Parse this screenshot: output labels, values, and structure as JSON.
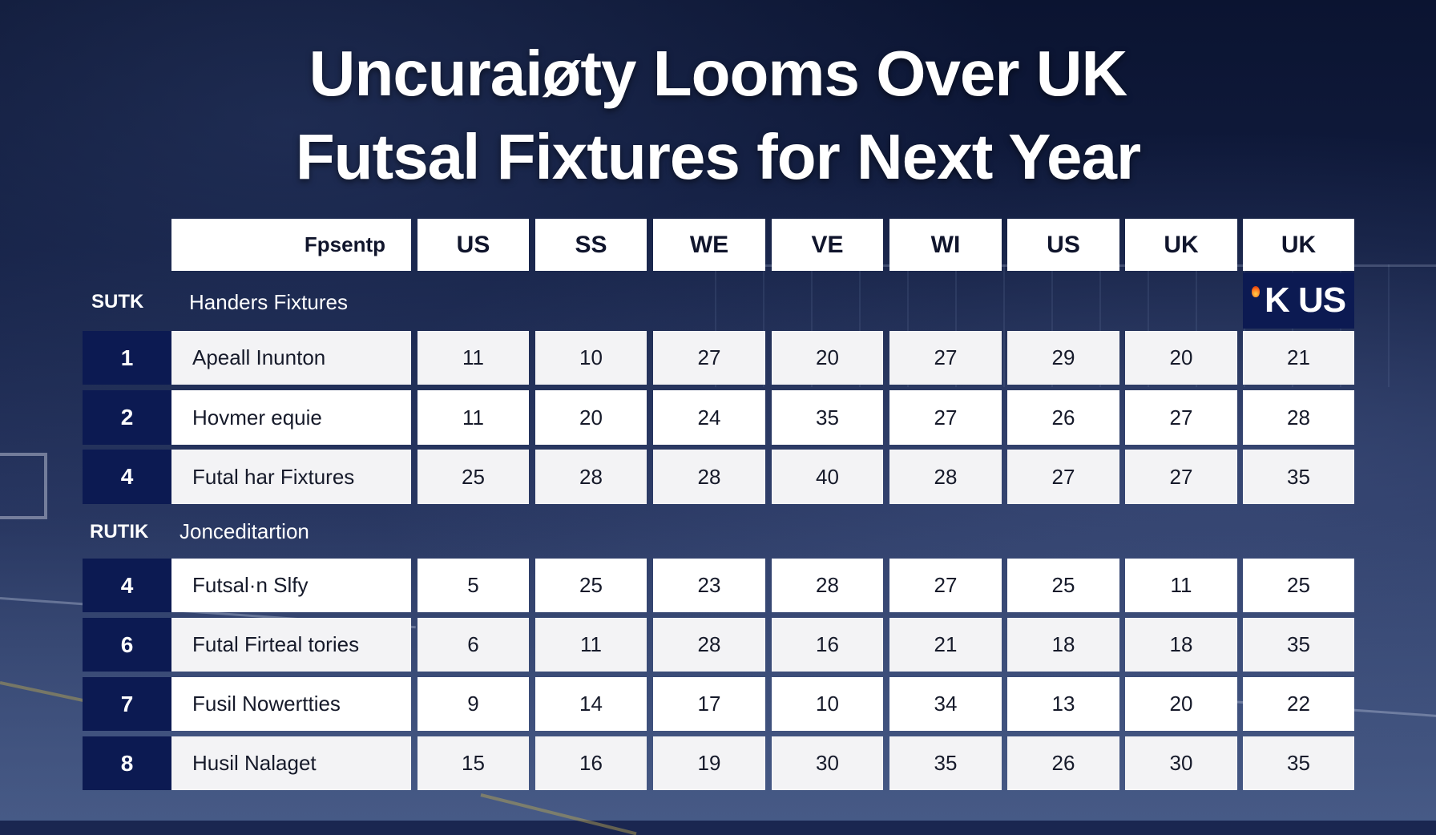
{
  "title": {
    "line1": "Uncuraiøty Looms Over UK",
    "line2": "Futsal Fixtures for Next Year"
  },
  "table": {
    "header_label": "Fpsentр",
    "columns": [
      "US",
      "SS",
      "WE",
      "VE",
      "WI",
      "US",
      "UK",
      "UK"
    ],
    "badge": {
      "icon": "flame-icon",
      "text": "K US"
    },
    "sections": [
      {
        "code": "SUTK",
        "title": "Handers Fixtures",
        "rows": [
          {
            "num": "1",
            "name": "Apeall Inunton",
            "values": [
              "11",
              "10",
              "27",
              "20",
              "27",
              "29",
              "20",
              "21"
            ]
          },
          {
            "num": "2",
            "name": "Hovmer equie",
            "values": [
              "11",
              "20",
              "24",
              "35",
              "27",
              "26",
              "27",
              "28"
            ]
          },
          {
            "num": "4",
            "name": "Futal har Fixtures",
            "values": [
              "25",
              "28",
              "28",
              "40",
              "28",
              "27",
              "27",
              "35"
            ]
          }
        ]
      },
      {
        "code": "RUTIK",
        "title": "Jonceditartion",
        "rows": [
          {
            "num": "4",
            "name": "Futsal·n Slfy",
            "values": [
              "5",
              "25",
              "23",
              "28",
              "27",
              "25",
              "11",
              "25"
            ]
          },
          {
            "num": "6",
            "name": "Futal Firteal tories",
            "values": [
              "6",
              "11",
              "28",
              "16",
              "21",
              "18",
              "18",
              "35"
            ]
          },
          {
            "num": "7",
            "name": "Fusil Nowertties",
            "values": [
              "9",
              "14",
              "17",
              "10",
              "34",
              "13",
              "20",
              "22"
            ]
          },
          {
            "num": "8",
            "name": "Husil Nalaget",
            "values": [
              "15",
              "16",
              "19",
              "30",
              "35",
              "26",
              "30",
              "35"
            ]
          }
        ]
      }
    ]
  },
  "colors": {
    "navy": "#0c1a52",
    "background": "#111c3f",
    "cell_light": "#f3f3f5",
    "cell_white": "#ffffff",
    "text_dark": "#161a2a"
  }
}
